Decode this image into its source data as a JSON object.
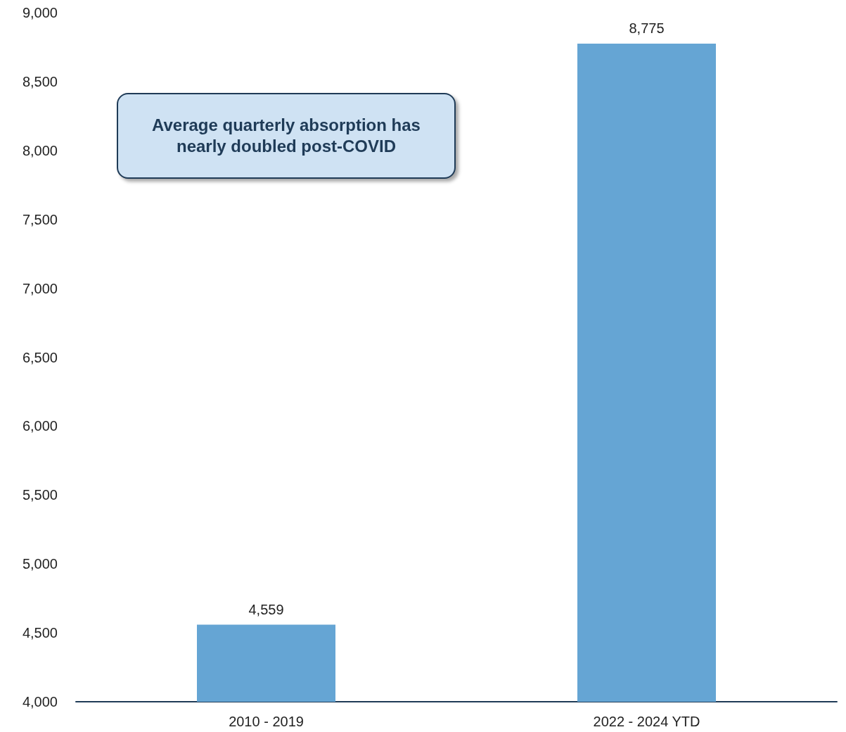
{
  "chart_data": {
    "type": "bar",
    "categories": [
      "2010 - 2019",
      "2022 - 2024 YTD"
    ],
    "values": [
      4559,
      8775
    ],
    "value_labels": [
      "4,559",
      "8,775"
    ],
    "color": "#65a5d4",
    "ylim": [
      4000,
      9000
    ],
    "yticks": [
      {
        "value": 4000,
        "label": "4,000"
      },
      {
        "value": 4500,
        "label": "4,500"
      },
      {
        "value": 5000,
        "label": "5,000"
      },
      {
        "value": 5500,
        "label": "5,500"
      },
      {
        "value": 6000,
        "label": "6,000"
      },
      {
        "value": 6500,
        "label": "6,500"
      },
      {
        "value": 7000,
        "label": "7,000"
      },
      {
        "value": 7500,
        "label": "7,500"
      },
      {
        "value": 8000,
        "label": "8,000"
      },
      {
        "value": 8500,
        "label": "8,500"
      },
      {
        "value": 9000,
        "label": "9,000"
      }
    ],
    "grid": false,
    "annotations": [
      "Average quarterly absorption has nearly doubled post-COVID"
    ]
  }
}
